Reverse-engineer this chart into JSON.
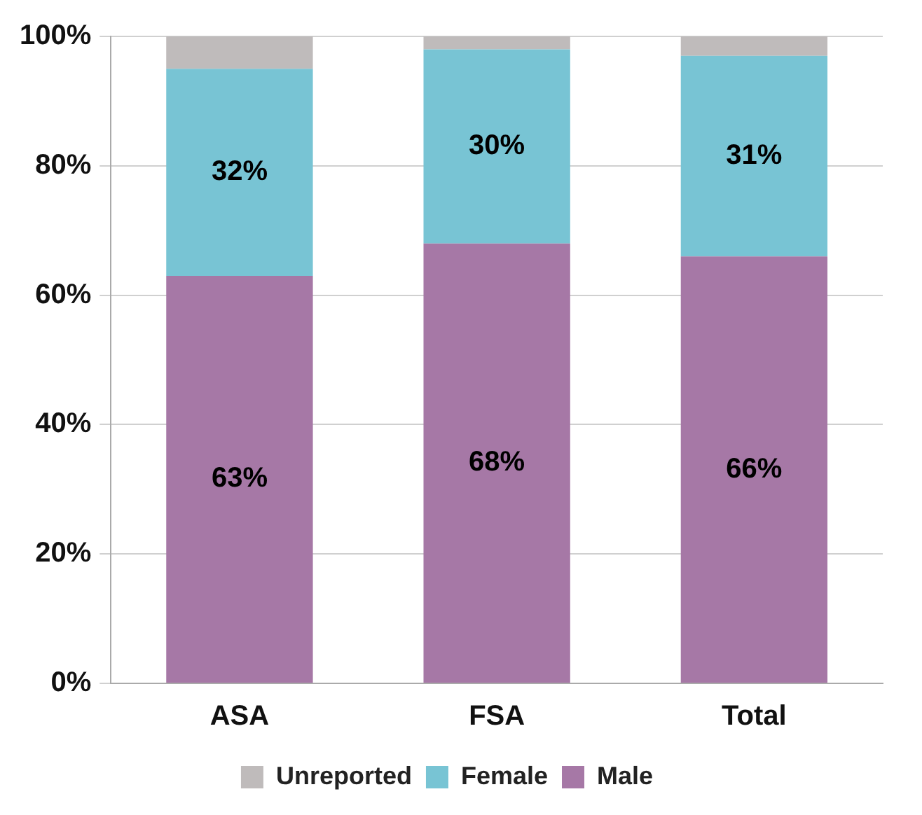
{
  "chart_data": {
    "type": "bar",
    "stacked": true,
    "categories": [
      "ASA",
      "FSA",
      "Total"
    ],
    "series": [
      {
        "name": "Male",
        "color": "#a678a6",
        "values": [
          63,
          68,
          66
        ],
        "value_labels": [
          "63%",
          "68%",
          "66%"
        ]
      },
      {
        "name": "Female",
        "color": "#78c4d4",
        "values": [
          32,
          30,
          31
        ],
        "value_labels": [
          "32%",
          "30%",
          "31%"
        ]
      },
      {
        "name": "Unreported",
        "color": "#bfbbbb",
        "values": [
          5,
          2,
          3
        ]
      }
    ],
    "ylim": [
      0,
      100
    ],
    "yticks": [
      {
        "value": 0,
        "label": "0%"
      },
      {
        "value": 20,
        "label": "20%"
      },
      {
        "value": 40,
        "label": "40%"
      },
      {
        "value": 60,
        "label": "60%"
      },
      {
        "value": 80,
        "label": "80%"
      },
      {
        "value": 100,
        "label": "100%"
      }
    ],
    "grid": "y",
    "legend": "bottom"
  }
}
